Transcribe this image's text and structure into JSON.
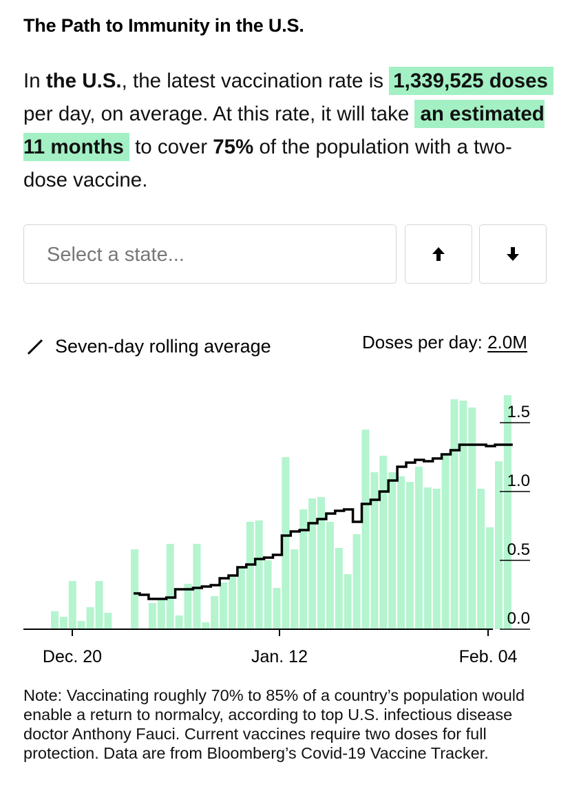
{
  "title": "The Path to Immunity in the U.S.",
  "summary": {
    "in": "In ",
    "region": "the U.S.",
    "t1": ", the latest vaccination rate is ",
    "rate": "1,339,525 doses",
    "t2": " per day, on average. At this rate, it will take ",
    "estimate": "an estimated 11 months",
    "t3": " to cover ",
    "coverage": "75%",
    "t4": " of the population with a two-dose vaccine."
  },
  "state_select": {
    "placeholder": "Select a state..."
  },
  "legend": {
    "label": "Seven-day rolling average"
  },
  "scale": {
    "label": "Doses per day: ",
    "value": "2.0M"
  },
  "note": "Note: Vaccinating roughly 70% to 85% of a country’s population would enable a return to normalcy, according to top U.S. infectious disease doctor Anthony Fauci. Current vaccines require two doses for full protection. Data are from Bloomberg’s Covid-19 Vaccine Tracker.",
  "colors": {
    "bar": "#b4f4cf",
    "line": "#000000",
    "highlight": "#a3f0c4"
  },
  "chart_data": {
    "type": "bar",
    "x_ticks": [
      "Dec. 20",
      "Jan. 12",
      "Feb. 04"
    ],
    "y_ticks": [
      "0.0",
      "0.5",
      "1.0",
      "1.5"
    ],
    "ylim": [
      0,
      1.65
    ],
    "series": [
      {
        "name": "Doses per day",
        "values": [
          0.13,
          0.09,
          0.35,
          0.06,
          0.16,
          0.35,
          0.12,
          0,
          0,
          0.58,
          0,
          0.19,
          0.21,
          0.62,
          0.1,
          0.33,
          0.62,
          0.05,
          0.24,
          0.34,
          0.38,
          0.45,
          0.78,
          0.79,
          0.5,
          0.3,
          1.25,
          0.58,
          0.87,
          0.95,
          0.96,
          0.78,
          0.59,
          0.4,
          0.69,
          1.45,
          1.14,
          1.26,
          1.14,
          1.11,
          1.07,
          1.18,
          1.03,
          1.02,
          1.28,
          1.67,
          1.66,
          1.61,
          1.02,
          0.74,
          1.22,
          1.7
        ]
      },
      {
        "name": "Seven-day rolling average",
        "values": [
          null,
          null,
          null,
          null,
          null,
          null,
          null,
          null,
          null,
          0.26,
          0.25,
          0.22,
          0.22,
          0.23,
          0.29,
          0.29,
          0.3,
          0.31,
          0.32,
          0.37,
          0.39,
          0.45,
          0.47,
          0.51,
          0.52,
          0.54,
          0.68,
          0.71,
          0.72,
          0.77,
          0.8,
          0.84,
          0.86,
          0.87,
          0.78,
          0.91,
          0.94,
          1.0,
          1.08,
          1.18,
          1.21,
          1.23,
          1.22,
          1.24,
          1.27,
          1.3,
          1.34,
          1.34,
          1.34,
          1.33,
          1.34,
          1.34
        ]
      }
    ]
  }
}
